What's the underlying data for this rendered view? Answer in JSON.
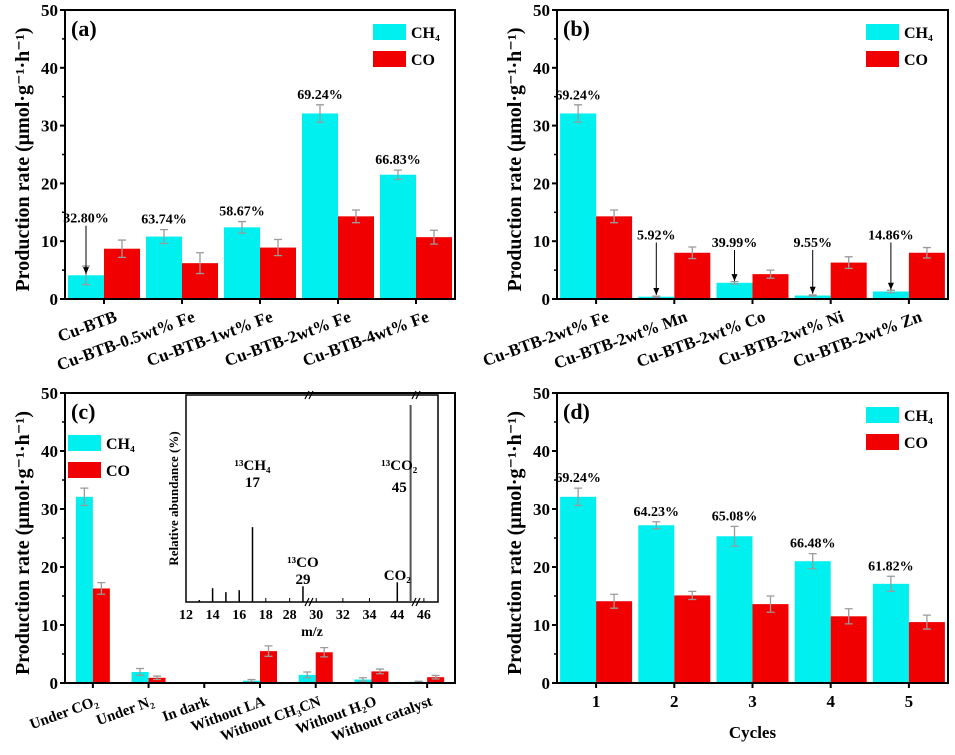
{
  "colors": {
    "ch4": "#00F0F0",
    "co": "#F00000",
    "error": "#9a9a9a"
  },
  "legend": {
    "ch4": "CH₄",
    "co": "CO"
  },
  "ylabel": "Production rate (μmol·g⁻¹·h⁻¹)",
  "chart_data": [
    {
      "type": "bar",
      "panel": "(a)",
      "ylim": [
        0,
        50
      ],
      "yticks": [
        0,
        10,
        20,
        30,
        40,
        50
      ],
      "ylabel": "Production rate (μmol·g⁻¹·h⁻¹)",
      "xlabel": "",
      "legend_position": "top-right",
      "categories": [
        "Cu-BTB",
        "Cu-BTB-0.5wt% Fe",
        "Cu-BTB-1wt% Fe",
        "Cu-BTB-2wt% Fe",
        "Cu-BTB-4wt% Fe"
      ],
      "series": [
        {
          "name": "CH₄",
          "values": [
            4.1,
            10.8,
            12.4,
            32.1,
            21.5
          ],
          "errors": [
            1.6,
            1.2,
            1.0,
            1.5,
            0.8
          ]
        },
        {
          "name": "CO",
          "values": [
            8.7,
            6.2,
            8.9,
            14.3,
            10.7
          ],
          "errors": [
            1.5,
            1.8,
            1.4,
            1.1,
            1.2
          ]
        }
      ],
      "annotations": [
        "32.80%",
        "63.74%",
        "58.67%",
        "69.24%",
        "66.83%"
      ],
      "arrow_on": [
        0
      ]
    },
    {
      "type": "bar",
      "panel": "(b)",
      "ylim": [
        0,
        50
      ],
      "yticks": [
        0,
        10,
        20,
        30,
        40,
        50
      ],
      "ylabel": "Production rate (μmol·g⁻¹·h⁻¹)",
      "xlabel": "",
      "legend_position": "top-right",
      "categories": [
        "Cu-BTB-2wt% Fe",
        "Cu-BTB-2wt% Mn",
        "Cu-BTB-2wt% Co",
        "Cu-BTB-2wt% Ni",
        "Cu-BTB-2wt% Zn"
      ],
      "series": [
        {
          "name": "CH₄",
          "values": [
            32.1,
            0.4,
            2.8,
            0.6,
            1.3
          ],
          "errors": [
            1.5,
            0.1,
            0.2,
            0.1,
            0.2
          ]
        },
        {
          "name": "CO",
          "values": [
            14.3,
            8.0,
            4.3,
            6.3,
            8.0
          ],
          "errors": [
            1.1,
            1.0,
            0.7,
            1.0,
            0.9
          ]
        }
      ],
      "annotations": [
        "69.24%",
        "5.92%",
        "39.99%",
        "9.55%",
        "14.86%"
      ],
      "arrow_on": [
        1,
        2,
        3,
        4
      ]
    },
    {
      "type": "bar",
      "panel": "(c)",
      "ylim": [
        0,
        50
      ],
      "yticks": [
        0,
        10,
        20,
        30,
        40,
        50
      ],
      "ylabel": "Production rate (μmol·g⁻¹·h⁻¹)",
      "xlabel": "",
      "legend_position": "top-left",
      "categories": [
        "Under CO₂",
        "Under N₂",
        "In dark",
        "Without LA",
        "Without CH₃CN",
        "Without H₂O",
        "Without catalyst"
      ],
      "series": [
        {
          "name": "CH₄",
          "values": [
            32.1,
            1.9,
            0,
            0.4,
            1.4,
            0.6,
            0.2
          ],
          "errors": [
            1.5,
            0.6,
            0,
            0.2,
            0.5,
            0.3,
            0.1
          ]
        },
        {
          "name": "CO",
          "values": [
            16.3,
            0.9,
            0,
            5.5,
            5.3,
            2.0,
            1.0
          ],
          "errors": [
            1.0,
            0.3,
            0,
            0.9,
            0.8,
            0.4,
            0.3
          ]
        }
      ],
      "annotations": [],
      "arrow_on": [],
      "inset": {
        "type": "bar",
        "xlabel": "m/z",
        "ylabel": "Relative abundance (%)",
        "xticks": [
          "12",
          "14",
          "16",
          "18",
          "28",
          "30",
          "32",
          "34",
          "44",
          "46"
        ],
        "peaks": [
          {
            "mz": 13,
            "height": 0.01
          },
          {
            "mz": 14,
            "height": 0.07
          },
          {
            "mz": 15,
            "height": 0.05
          },
          {
            "mz": 16,
            "height": 0.06
          },
          {
            "mz": 17,
            "height": 0.38
          },
          {
            "mz": 29,
            "height": 0.08
          },
          {
            "mz": 44,
            "height": 0.1
          },
          {
            "mz": 45,
            "height": 1.0
          }
        ],
        "labels": [
          {
            "species": "¹³CH₄",
            "mz": "17"
          },
          {
            "species": "¹³CO",
            "mz": "29"
          },
          {
            "species": "¹³CO₂",
            "mz": "45"
          },
          {
            "species": "CO₂",
            "mz": ""
          }
        ]
      }
    },
    {
      "type": "bar",
      "panel": "(d)",
      "ylim": [
        0,
        50
      ],
      "yticks": [
        0,
        10,
        20,
        30,
        40,
        50
      ],
      "ylabel": "Production rate (μmol·g⁻¹·h⁻¹)",
      "xlabel": "Cycles",
      "legend_position": "top-right",
      "categories": [
        "1",
        "2",
        "3",
        "4",
        "5"
      ],
      "series": [
        {
          "name": "CH₄",
          "values": [
            32.1,
            27.2,
            25.3,
            21.0,
            17.1
          ],
          "errors": [
            1.5,
            0.6,
            1.7,
            1.3,
            1.3
          ]
        },
        {
          "name": "CO",
          "values": [
            14.1,
            15.1,
            13.6,
            11.5,
            10.5
          ],
          "errors": [
            1.2,
            0.7,
            1.4,
            1.3,
            1.2
          ]
        }
      ],
      "annotations": [
        "69.24%",
        "64.23%",
        "65.08%",
        "66.48%",
        "61.82%"
      ],
      "arrow_on": []
    }
  ]
}
